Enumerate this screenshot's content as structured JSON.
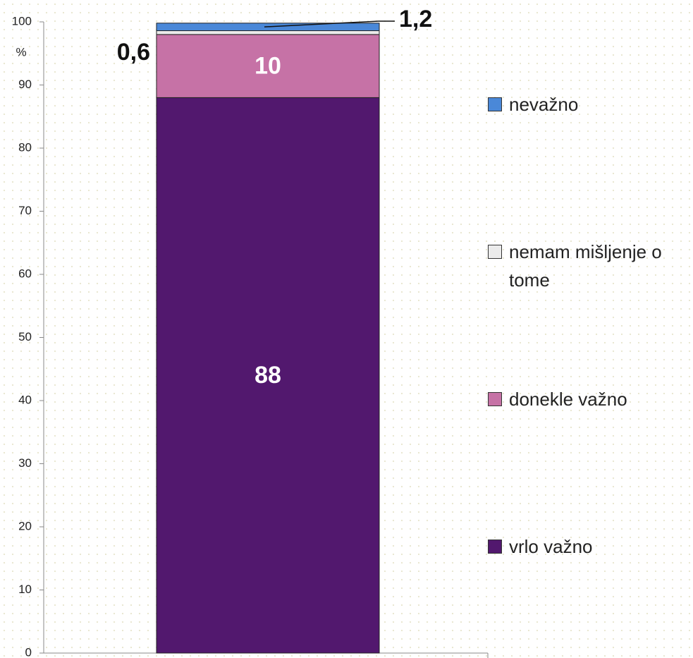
{
  "chart_data": {
    "type": "stacked_bar",
    "y_label": "%",
    "categories": [
      null
    ],
    "series": [
      {
        "name": "vrlo važno",
        "color": "#52186e",
        "values": [
          88
        ],
        "value_labels": [
          "88"
        ]
      },
      {
        "name": "donekle važno",
        "color": "#c672a6",
        "values": [
          10
        ],
        "value_labels": [
          "10"
        ]
      },
      {
        "name": "nemam mišljenje o tome",
        "color": "#ebebeb",
        "values": [
          0.6
        ],
        "value_labels": [
          "0,6"
        ]
      },
      {
        "name": "nevažno",
        "color": "#4a88d8",
        "values": [
          1.2
        ],
        "value_labels": [
          "1,2"
        ]
      }
    ],
    "ylim": [
      0,
      100
    ],
    "yticks": [
      0,
      10,
      20,
      30,
      40,
      50,
      60,
      70,
      80,
      90,
      100
    ],
    "legend": "right"
  }
}
